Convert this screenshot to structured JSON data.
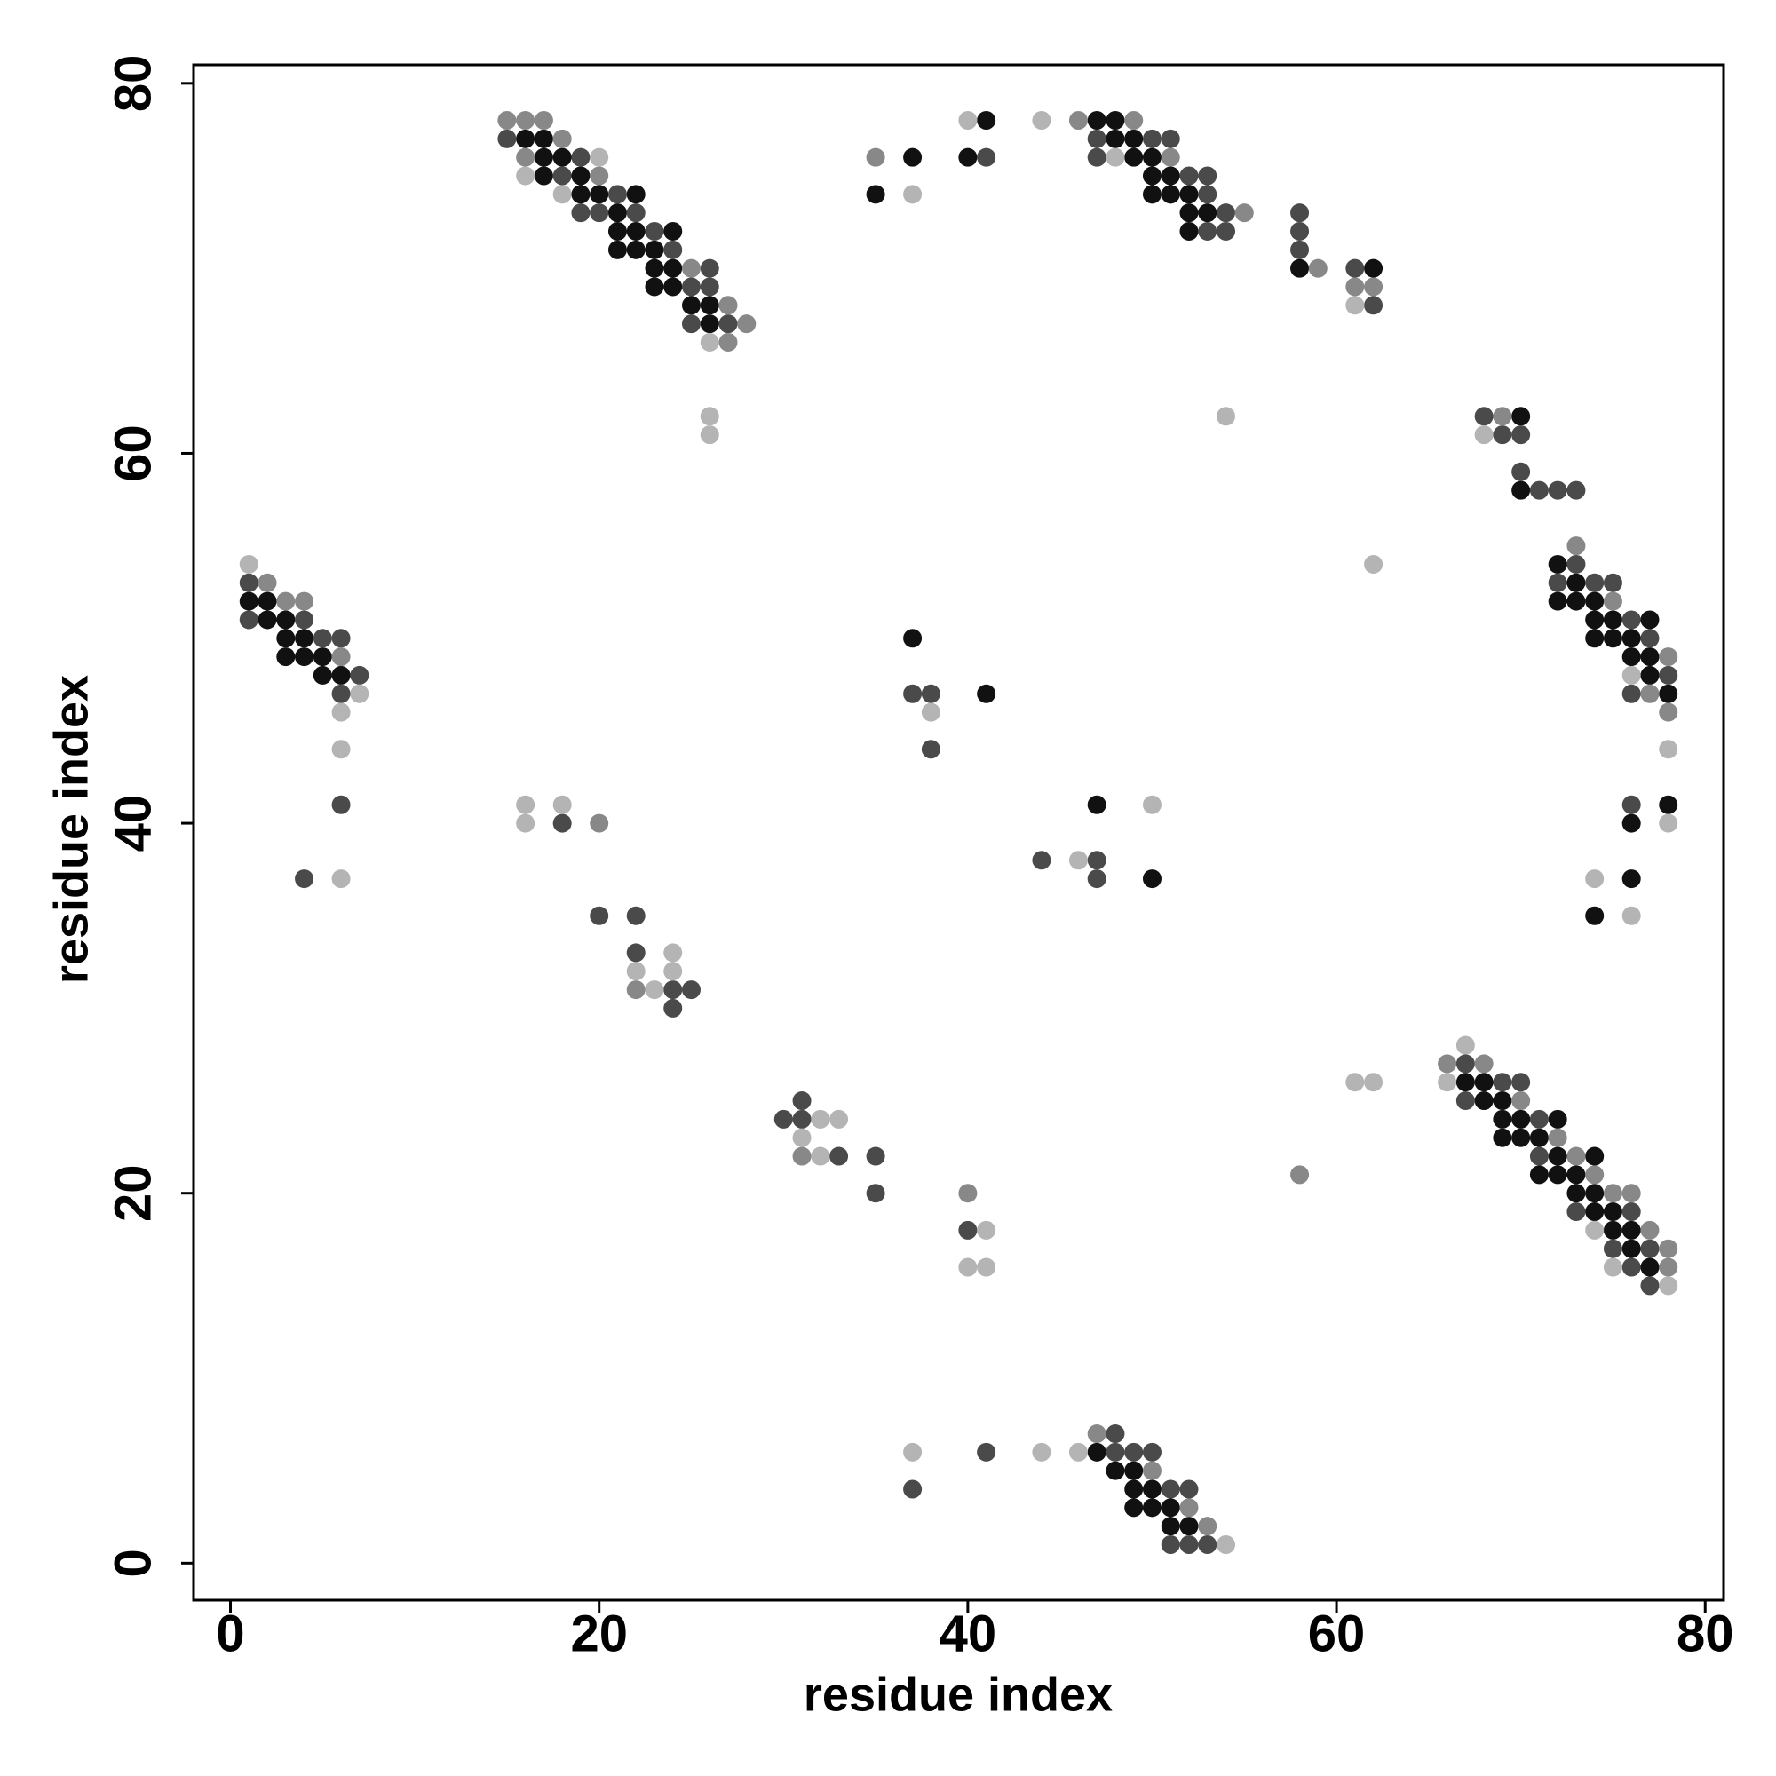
{
  "chart_data": {
    "type": "scatter",
    "xlabel": "residue index",
    "ylabel": "residue index",
    "xlim": [
      -2,
      81
    ],
    "ylim": [
      -2,
      81
    ],
    "xticks": [
      0,
      20,
      40,
      60,
      80
    ],
    "yticks": [
      0,
      20,
      40,
      60,
      80
    ],
    "series": [
      {
        "color": "#111111",
        "x": [
          41,
          47,
          48,
          16,
          17,
          48,
          49,
          17,
          18,
          37,
          40,
          49,
          50,
          17,
          19,
          50,
          51,
          19,
          20,
          22,
          35,
          50,
          51,
          52,
          21,
          52,
          53,
          21,
          22,
          24,
          52,
          21,
          22,
          23,
          23,
          24,
          58,
          62,
          23,
          24,
          25,
          26,
          26,
          70,
          70,
          72,
          73,
          1,
          2,
          72,
          73,
          74,
          2,
          3,
          74,
          75,
          77,
          3,
          4,
          37,
          74,
          75,
          76,
          3,
          4,
          5,
          76,
          77,
          5,
          6,
          77,
          41,
          78,
          47,
          78,
          76,
          50,
          76,
          74,
          67,
          68,
          68,
          69,
          69,
          70,
          72,
          69,
          70,
          71,
          72,
          74,
          71,
          72,
          73,
          73,
          74,
          74,
          75,
          75,
          76,
          76,
          77,
          47,
          48,
          49,
          49,
          50,
          49,
          50,
          51,
          51,
          52
        ],
        "values": [
          78,
          78,
          78,
          77,
          77,
          77,
          77,
          76,
          76,
          76,
          76,
          76,
          76,
          75,
          75,
          75,
          75,
          74,
          74,
          74,
          74,
          74,
          74,
          74,
          73,
          73,
          73,
          72,
          72,
          72,
          72,
          71,
          71,
          71,
          70,
          70,
          70,
          70,
          69,
          69,
          68,
          68,
          67,
          62,
          58,
          54,
          53,
          52,
          52,
          52,
          52,
          52,
          51,
          51,
          51,
          51,
          51,
          50,
          50,
          50,
          50,
          50,
          50,
          49,
          49,
          49,
          49,
          49,
          48,
          48,
          48,
          47,
          47,
          41,
          41,
          40,
          37,
          37,
          35,
          26,
          26,
          25,
          25,
          24,
          24,
          24,
          23,
          23,
          23,
          22,
          22,
          21,
          21,
          21,
          20,
          20,
          19,
          19,
          18,
          18,
          17,
          16,
          6,
          5,
          5,
          4,
          4,
          3,
          3,
          3,
          2,
          2
        ]
      },
      {
        "color": "#4a4a4a",
        "x": [
          15,
          50,
          51,
          47,
          19,
          41,
          47,
          18,
          52,
          53,
          21,
          53,
          19,
          20,
          22,
          54,
          58,
          23,
          53,
          54,
          58,
          24,
          58,
          26,
          61,
          25,
          26,
          62,
          25,
          27,
          68,
          69,
          70,
          70,
          71,
          72,
          73,
          73,
          1,
          72,
          74,
          75,
          1,
          4,
          76,
          5,
          6,
          77,
          7,
          78,
          6,
          37,
          38,
          76,
          38,
          6,
          76,
          18,
          44,
          47,
          4,
          47,
          20,
          22,
          22,
          24,
          25,
          24,
          67,
          69,
          70,
          31,
          67,
          30,
          31,
          71,
          33,
          35,
          71,
          35,
          73,
          76,
          40,
          75,
          77,
          76,
          77,
          48,
          41,
          48,
          49,
          50,
          37,
          51,
          52,
          51,
          52,
          53
        ],
        "values": [
          77,
          77,
          77,
          77,
          76,
          76,
          76,
          75,
          75,
          75,
          74,
          74,
          73,
          73,
          73,
          73,
          73,
          72,
          72,
          72,
          72,
          71,
          71,
          70,
          70,
          69,
          69,
          68,
          67,
          67,
          62,
          61,
          61,
          59,
          58,
          58,
          58,
          54,
          53,
          53,
          53,
          53,
          51,
          51,
          51,
          50,
          50,
          50,
          48,
          48,
          47,
          47,
          47,
          47,
          44,
          41,
          41,
          40,
          38,
          38,
          37,
          37,
          35,
          35,
          33,
          31,
          31,
          30,
          27,
          26,
          26,
          25,
          25,
          24,
          24,
          24,
          22,
          22,
          22,
          20,
          19,
          19,
          18,
          17,
          17,
          16,
          15,
          7,
          6,
          6,
          6,
          6,
          4,
          4,
          4,
          1,
          1,
          1
        ]
      },
      {
        "color": "#888888",
        "x": [
          15,
          16,
          17,
          46,
          49,
          18,
          16,
          35,
          51,
          20,
          55,
          25,
          59,
          61,
          62,
          27,
          28,
          27,
          69,
          73,
          2,
          3,
          4,
          75,
          6,
          78,
          77,
          78,
          20,
          22,
          66,
          68,
          70,
          72,
          31,
          73,
          58,
          74,
          40,
          75,
          76,
          77,
          78,
          78,
          47,
          50,
          52,
          53
        ],
        "values": [
          78,
          78,
          78,
          78,
          78,
          77,
          76,
          76,
          76,
          75,
          73,
          70,
          70,
          69,
          69,
          68,
          67,
          66,
          62,
          55,
          53,
          52,
          52,
          52,
          49,
          49,
          47,
          46,
          40,
          31,
          27,
          27,
          25,
          23,
          22,
          22,
          21,
          21,
          20,
          20,
          20,
          18,
          17,
          16,
          7,
          5,
          3,
          2
        ]
      },
      {
        "color": "#b4b4b4",
        "x": [
          40,
          44,
          20,
          48,
          16,
          18,
          37,
          61,
          26,
          26,
          54,
          26,
          68,
          1,
          62,
          76,
          7,
          6,
          38,
          6,
          78,
          16,
          18,
          50,
          16,
          78,
          46,
          6,
          74,
          76,
          24,
          22,
          24,
          23,
          67,
          61,
          62,
          66,
          32,
          33,
          31,
          32,
          41,
          74,
          40,
          41,
          75,
          78,
          37,
          44,
          46,
          54
        ],
        "values": [
          78,
          78,
          76,
          76,
          75,
          74,
          74,
          68,
          66,
          62,
          62,
          61,
          61,
          54,
          54,
          48,
          47,
          46,
          46,
          44,
          44,
          41,
          41,
          41,
          40,
          40,
          38,
          37,
          37,
          35,
          33,
          32,
          32,
          31,
          28,
          26,
          26,
          26,
          24,
          24,
          23,
          22,
          18,
          18,
          16,
          16,
          16,
          15,
          6,
          6,
          6,
          1
        ]
      }
    ]
  }
}
